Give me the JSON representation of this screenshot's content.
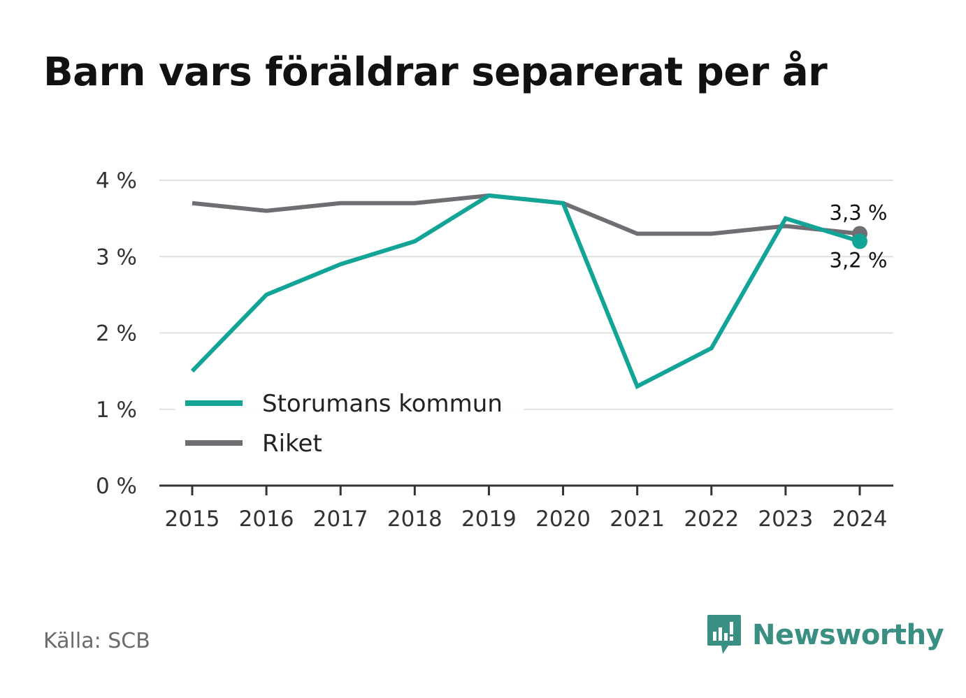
{
  "title": "Barn vars föräldrar separerat per år",
  "source": "Källa: SCB",
  "brand": {
    "name": "Newsworthy",
    "icon": "newsworthy-logo-icon"
  },
  "colors": {
    "storuman": "#12a496",
    "riket": "#6e6e73",
    "grid": "#e0e0e0",
    "axis": "#333333",
    "text": "#333333",
    "brand": "#3a8f83"
  },
  "chart_data": {
    "type": "line",
    "title": "Barn vars föräldrar separerat per år",
    "xlabel": "",
    "ylabel": "",
    "x": [
      "2015",
      "2016",
      "2017",
      "2018",
      "2019",
      "2020",
      "2021",
      "2022",
      "2023",
      "2024"
    ],
    "ylim": [
      0,
      4
    ],
    "yticks": [
      0,
      1,
      2,
      3,
      4
    ],
    "ytick_labels": [
      "0 %",
      "1 %",
      "2 %",
      "3 %",
      "4 %"
    ],
    "grid": true,
    "legend_position": "bottom-left",
    "series": [
      {
        "name": "Storumans kommun",
        "values": [
          1.5,
          2.5,
          2.9,
          3.2,
          3.8,
          3.7,
          1.3,
          1.8,
          3.5,
          3.2
        ],
        "end_label": "3,2 %",
        "color": "#12a496"
      },
      {
        "name": "Riket",
        "values": [
          3.7,
          3.6,
          3.7,
          3.7,
          3.8,
          3.7,
          3.3,
          3.3,
          3.4,
          3.3
        ],
        "end_label": "3,3 %",
        "color": "#6e6e73"
      }
    ]
  }
}
